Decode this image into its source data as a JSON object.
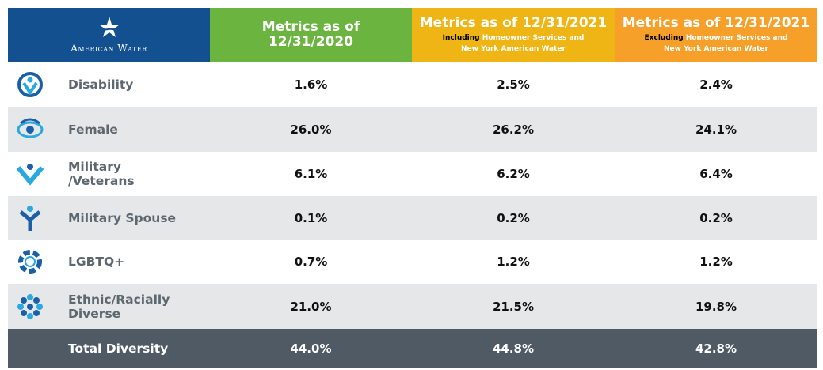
{
  "header": {
    "logo": "American Water",
    "columns": [
      {
        "title": "Metrics as of 12/31/2020"
      },
      {
        "title": "Metrics as of 12/31/2021",
        "qualifier": "Including",
        "note": "Homeowner Services and New York American Water"
      },
      {
        "title": "Metrics as of 12/31/2021",
        "qualifier": "Excluding",
        "note": "Homeowner Services and New York American Water"
      }
    ]
  },
  "rows": [
    {
      "label": "Disability",
      "values": [
        "1.6%",
        "2.5%",
        "2.4%"
      ]
    },
    {
      "label": "Female",
      "values": [
        "26.0%",
        "26.2%",
        "24.1%"
      ]
    },
    {
      "label": "Military /Veterans",
      "values": [
        "6.1%",
        "6.2%",
        "6.4%"
      ]
    },
    {
      "label": "Military Spouse",
      "values": [
        "0.1%",
        "0.2%",
        "0.2%"
      ]
    },
    {
      "label": "LGBTQ+",
      "values": [
        "0.7%",
        "1.2%",
        "1.2%"
      ]
    },
    {
      "label": "Ethnic/Racially Diverse",
      "values": [
        "21.0%",
        "21.5%",
        "19.8%"
      ]
    }
  ],
  "total": {
    "label": "Total Diversity",
    "values": [
      "44.0%",
      "44.8%",
      "42.8%"
    ]
  }
}
